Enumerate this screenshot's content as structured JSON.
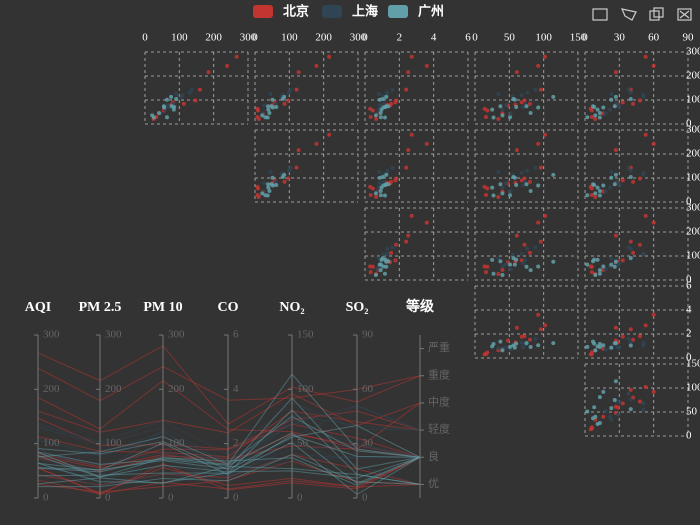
{
  "chart_data": {
    "type": "parallel",
    "legend": "top",
    "series": [
      {
        "name": "北京",
        "color": "#c23531",
        "values": [
          [
            55,
            9,
            56,
            0.46,
            18,
            6,
            "良"
          ],
          [
            25,
            11,
            21,
            0.65,
            34,
            9,
            "优"
          ],
          [
            56,
            7,
            63,
            0.3,
            14,
            5,
            "良"
          ],
          [
            33,
            7,
            29,
            0.33,
            16,
            6,
            "优"
          ],
          [
            42,
            24,
            44,
            0.76,
            40,
            16,
            "优"
          ],
          [
            82,
            58,
            90,
            1.77,
            68,
            33,
            "良"
          ],
          [
            74,
            49,
            77,
            1.46,
            48,
            27,
            "良"
          ],
          [
            78,
            55,
            80,
            1.29,
            59,
            29,
            "良"
          ],
          [
            267,
            216,
            280,
            2.72,
            102,
            53,
            "重度"
          ],
          [
            185,
            127,
            216,
            2.52,
            61,
            27,
            "中度"
          ],
          [
            160,
            121,
            143,
            2.4,
            96,
            40,
            "中度"
          ],
          [
            147,
            97,
            98,
            1.81,
            72,
            48,
            "轻度"
          ],
          [
            113,
            86,
            84,
            1.52,
            80,
            42,
            "轻度"
          ],
          [
            239,
            179,
            242,
            3.6,
            92,
            60,
            "重度"
          ]
        ]
      },
      {
        "name": "上海",
        "color": "#2f4554",
        "values": [
          [
            91,
            45,
            125,
            0.82,
            34,
            23,
            "良"
          ],
          [
            65,
            27,
            78,
            0.86,
            45,
            29,
            "良"
          ],
          [
            83,
            60,
            84,
            1.09,
            73,
            27,
            "良"
          ],
          [
            109,
            81,
            121,
            1.28,
            68,
            51,
            "轻度"
          ],
          [
            106,
            77,
            114,
            1.07,
            55,
            51,
            "轻度"
          ],
          [
            130,
            99,
            130,
            1.3,
            76,
            40,
            "轻度"
          ],
          [
            70,
            51,
            70,
            0.9,
            70,
            30,
            "良"
          ],
          [
            45,
            23,
            44,
            0.7,
            52,
            18,
            "优"
          ],
          [
            136,
            103,
            142,
            1.6,
            88,
            38,
            "轻度"
          ],
          [
            58,
            36,
            60,
            0.8,
            40,
            22,
            "良"
          ]
        ]
      },
      {
        "name": "广州",
        "color": "#61a0a8",
        "values": [
          [
            26,
            37,
            27,
            1.163,
            27,
            13,
            "优"
          ],
          [
            85,
            62,
            71,
            1.195,
            60,
            8,
            "良"
          ],
          [
            78,
            38,
            74,
            1.363,
            37,
            7,
            "良"
          ],
          [
            21,
            21,
            36,
            0.634,
            40,
            9,
            "优"
          ],
          [
            41,
            42,
            46,
            0.915,
            81,
            13,
            "优"
          ],
          [
            56,
            52,
            69,
            1.067,
            92,
            16,
            "良"
          ],
          [
            64,
            30,
            28,
            0.924,
            51,
            2,
            "良"
          ],
          [
            55,
            48,
            74,
            1.236,
            75,
            26,
            "良"
          ],
          [
            76,
            85,
            113,
            1.237,
            114,
            27,
            "良"
          ],
          [
            91,
            81,
            104,
            1.041,
            56,
            40,
            "良"
          ],
          [
            84,
            39,
            60,
            0.964,
            25,
            11,
            "良"
          ],
          [
            64,
            51,
            101,
            0.862,
            58,
            23,
            "良"
          ]
        ]
      }
    ],
    "dimensions": [
      {
        "name": "AQI",
        "lim": [
          0,
          300
        ],
        "ticks": [
          0,
          100,
          200,
          300
        ]
      },
      {
        "name": "PM 2.5",
        "lim": [
          0,
          300
        ],
        "ticks": [
          0,
          100,
          200,
          300
        ]
      },
      {
        "name": "PM 10",
        "lim": [
          0,
          300
        ],
        "ticks": [
          0,
          100,
          200,
          300
        ]
      },
      {
        "name": "CO",
        "lim": [
          0,
          6
        ],
        "ticks": [
          0,
          2,
          4,
          6
        ]
      },
      {
        "name": "NO₂",
        "lim": [
          0,
          150
        ],
        "ticks": [
          0,
          50,
          100,
          150
        ]
      },
      {
        "name": "SO₂",
        "lim": [
          0,
          90
        ],
        "ticks": [
          0,
          30,
          60,
          90
        ]
      },
      {
        "name": "等级",
        "categories": [
          "优",
          "良",
          "轻度",
          "中度",
          "重度",
          "严重"
        ]
      }
    ],
    "matrix": {
      "columns": [
        {
          "dim": 0,
          "xlim": [
            0,
            300
          ],
          "xticks": [
            0,
            100,
            200,
            300
          ]
        },
        {
          "dim": 1,
          "xlim": [
            0,
            300
          ],
          "xticks": [
            0,
            100,
            200,
            300
          ]
        },
        {
          "dim": 3,
          "xlim": [
            0,
            6
          ],
          "xticks": [
            0,
            2,
            4,
            6
          ]
        },
        {
          "dim": 4,
          "xlim": [
            0,
            150
          ],
          "xticks": [
            0,
            50,
            100,
            150
          ]
        },
        {
          "dim": 5,
          "xlim": [
            0,
            90
          ],
          "xticks": [
            0,
            30,
            60,
            90
          ]
        }
      ],
      "rows": [
        {
          "dim": 2,
          "ylim": [
            0,
            300
          ],
          "yticks": [
            0,
            100,
            200,
            300
          ]
        },
        {
          "dim": 2,
          "ylim": [
            0,
            300
          ],
          "yticks": [
            0,
            100,
            200,
            300
          ]
        },
        {
          "dim": 0,
          "ylim": [
            0,
            300
          ],
          "yticks": [
            0,
            100,
            200,
            300
          ]
        },
        {
          "dim": 3,
          "ylim": [
            0,
            6
          ],
          "yticks": [
            0,
            2,
            4,
            6
          ]
        },
        {
          "dim": 4,
          "ylim": [
            0,
            150
          ],
          "yticks": [
            0,
            50,
            100,
            150
          ]
        }
      ]
    }
  }
}
